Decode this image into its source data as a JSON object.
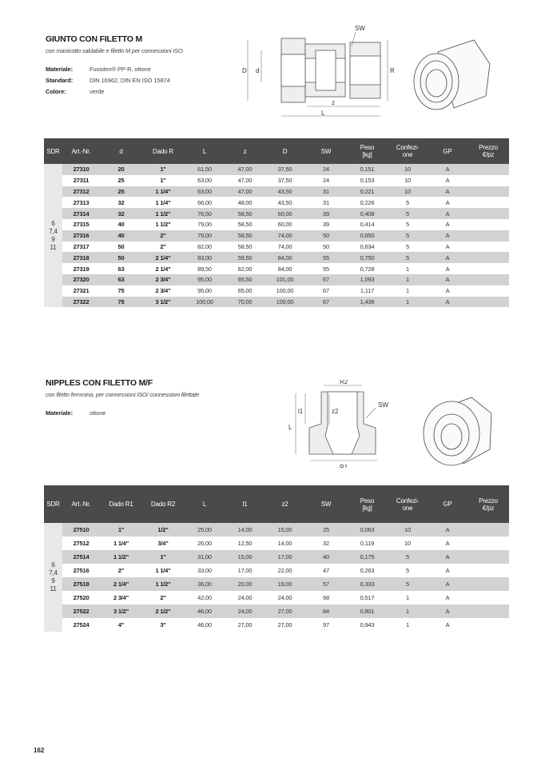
{
  "section1": {
    "title": "GIUNTO CON FILETTO M",
    "subtitle": "con manicotto saldabile e filetto M per connessioni ISO",
    "properties": [
      {
        "label": "Materiale:",
        "value": "Fusiolen® PP-R, ottone"
      },
      {
        "label": "Standard:",
        "value": "DIN 16962, DIN EN ISO 15874"
      },
      {
        "label": "Colore:",
        "value": "verde"
      }
    ],
    "drawing_labels": {
      "sw": "SW",
      "D": "D",
      "d": "d",
      "R": "R",
      "z": "z",
      "L": "L"
    },
    "table": {
      "headers": [
        "SDR",
        "Art.-Nr.",
        "d",
        "Dado R",
        "L",
        "z",
        "D",
        "SW",
        "Peso\n[kg]",
        "Confezi-\none",
        "GP",
        "Prezzo\n€/pz"
      ],
      "sdr": "6\n7,4\n9\n11",
      "rows": [
        [
          "27310",
          "20",
          "1\"",
          "61,50",
          "47,00",
          "37,50",
          "24",
          "0,151",
          "10",
          "A",
          ""
        ],
        [
          "27311",
          "25",
          "1\"",
          "63,00",
          "47,00",
          "37,50",
          "24",
          "0,153",
          "10",
          "A",
          ""
        ],
        [
          "27312",
          "25",
          "1 1/4\"",
          "63,00",
          "47,00",
          "43,50",
          "31",
          "0,221",
          "10",
          "A",
          ""
        ],
        [
          "27313",
          "32",
          "1 1/4\"",
          "66,00",
          "48,00",
          "43,50",
          "31",
          "0,226",
          "5",
          "A",
          ""
        ],
        [
          "27314",
          "32",
          "1 1/2\"",
          "76,50",
          "58,50",
          "60,00",
          "39",
          "0,408",
          "5",
          "A",
          ""
        ],
        [
          "27315",
          "40",
          "1 1/2\"",
          "79,00",
          "58,50",
          "60,00",
          "39",
          "0,414",
          "5",
          "A",
          ""
        ],
        [
          "27316",
          "40",
          "2\"",
          "79,00",
          "58,50",
          "74,00",
          "50",
          "0,650",
          "5",
          "A",
          ""
        ],
        [
          "27317",
          "50",
          "2\"",
          "82,00",
          "58,50",
          "74,00",
          "50",
          "0,634",
          "5",
          "A",
          ""
        ],
        [
          "27318",
          "50",
          "2 1/4\"",
          "83,00",
          "59,50",
          "84,00",
          "55",
          "0,750",
          "5",
          "A",
          ""
        ],
        [
          "27319",
          "63",
          "2 1/4\"",
          "89,50",
          "62,00",
          "84,00",
          "55",
          "0,728",
          "1",
          "A",
          ""
        ],
        [
          "27320",
          "63",
          "2 3/4\"",
          "95,00",
          "65,50",
          "101,00",
          "67",
          "1,093",
          "1",
          "A",
          ""
        ],
        [
          "27321",
          "75",
          "2 3/4\"",
          "95,00",
          "65,00",
          "100,00",
          "67",
          "1,117",
          "1",
          "A",
          ""
        ],
        [
          "27322",
          "75",
          "3 1/2\"",
          "100,00",
          "70,00",
          "100,00",
          "67",
          "1,436",
          "1",
          "A",
          ""
        ]
      ]
    }
  },
  "section2": {
    "title": "NIPPLES CON FILETTO M/F",
    "subtitle": "con filetto femmina, per connessioni ISO/ connessioni filettate",
    "properties": [
      {
        "label": "Materiale:",
        "value": "ottone"
      }
    ],
    "drawing_labels": {
      "r2": "R2",
      "sw": "SW",
      "l1": "l1",
      "L": "L",
      "z2": "z2",
      "r1": "R1"
    },
    "table": {
      "headers": [
        "SDR",
        "Art.-Nr.",
        "Dado R1",
        "Dado R2",
        "L",
        "l1",
        "z2",
        "SW",
        "Peso\n[kg]",
        "Confezi-\none",
        "GP",
        "Prezzo\n€/pz"
      ],
      "sdr": "6\n7,4\n9\n11",
      "rows": [
        [
          "27510",
          "1\"",
          "1/2\"",
          "25,00",
          "14,00",
          "15,00",
          "25",
          "0,063",
          "10",
          "A",
          ""
        ],
        [
          "27512",
          "1 1/4\"",
          "3/4\"",
          "26,00",
          "12,50",
          "14,00",
          "32",
          "0,119",
          "10",
          "A",
          ""
        ],
        [
          "27514",
          "1 1/2\"",
          "1\"",
          "31,00",
          "15,00",
          "17,00",
          "40",
          "0,175",
          "5",
          "A",
          ""
        ],
        [
          "27516",
          "2\"",
          "1 1/4\"",
          "33,00",
          "17,00",
          "22,00",
          "47",
          "0,263",
          "5",
          "A",
          ""
        ],
        [
          "27518",
          "2 1/4\"",
          "1 1/2\"",
          "36,00",
          "20,00",
          "19,00",
          "57",
          "0,333",
          "5",
          "A",
          ""
        ],
        [
          "27520",
          "2 3/4\"",
          "2\"",
          "42,00",
          "24,00",
          "24,00",
          "68",
          "0,517",
          "1",
          "A",
          ""
        ],
        [
          "27522",
          "3 1/2\"",
          "2 1/2\"",
          "46,00",
          "24,00",
          "27,00",
          "84",
          "0,801",
          "1",
          "A",
          ""
        ],
        [
          "27524",
          "4\"",
          "3\"",
          "46,00",
          "27,00",
          "27,00",
          "97",
          "0,943",
          "1",
          "A",
          ""
        ]
      ]
    }
  },
  "page_number": "162",
  "colors": {
    "header_bg": "#4a4a4a",
    "row_shade": "#d2d2d2",
    "sdr_bg": "#e8e8e8"
  }
}
